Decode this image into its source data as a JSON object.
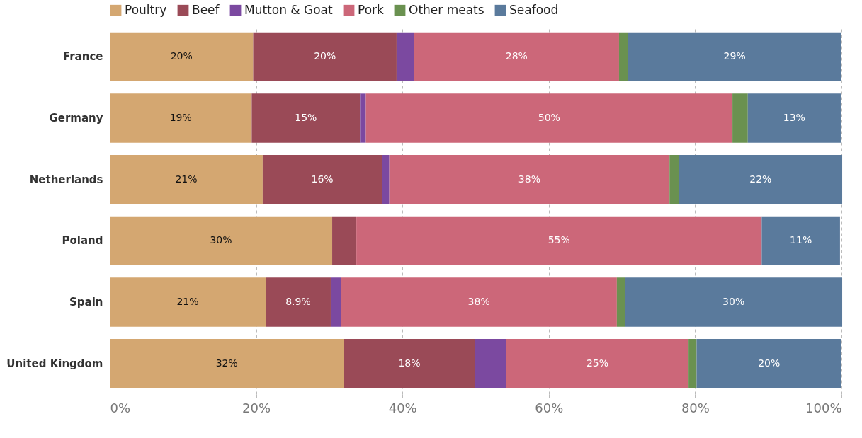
{
  "chart_data": {
    "type": "bar",
    "orientation": "horizontal",
    "stacked": true,
    "categories": [
      "France",
      "Germany",
      "Netherlands",
      "Poland",
      "Spain",
      "United Kingdom"
    ],
    "series": [
      {
        "name": "Poultry",
        "color": "#d4a771",
        "values": [
          19.6,
          19.4,
          20.9,
          30.4,
          21.3,
          32.0
        ],
        "value_labels": [
          "20%",
          "19%",
          "21%",
          "30%",
          "21%",
          "32%"
        ]
      },
      {
        "name": "Beef",
        "color": "#9a4a57",
        "values": [
          19.6,
          14.8,
          16.3,
          3.3,
          8.9,
          17.9
        ],
        "value_labels": [
          "20%",
          "15%",
          "16%",
          null,
          "8.9%",
          "18%"
        ]
      },
      {
        "name": "Mutton & Goat",
        "color": "#7b49a0",
        "values": [
          2.4,
          0.8,
          1.0,
          0,
          1.4,
          4.3
        ],
        "value_labels": [
          null,
          null,
          null,
          null,
          null,
          null
        ]
      },
      {
        "name": "Pork",
        "color": "#cc6779",
        "values": [
          28.0,
          50.1,
          38.3,
          55.4,
          37.7,
          24.9
        ],
        "value_labels": [
          "28%",
          "50%",
          "38%",
          "55%",
          "38%",
          "25%"
        ]
      },
      {
        "name": "Other meats",
        "color": "#6a9150",
        "values": [
          1.2,
          2.1,
          1.3,
          0,
          1.1,
          1.1
        ],
        "value_labels": [
          null,
          null,
          null,
          null,
          null,
          null
        ]
      },
      {
        "name": "Seafood",
        "color": "#5a7a9c",
        "values": [
          29.2,
          12.7,
          22.3,
          10.7,
          29.7,
          19.8
        ],
        "value_labels": [
          "29%",
          "13%",
          "22%",
          "11%",
          "30%",
          "20%"
        ]
      }
    ],
    "xlim": [
      0,
      100
    ],
    "xticks": [
      {
        "value": 0,
        "label": "0%"
      },
      {
        "value": 20,
        "label": "20%"
      },
      {
        "value": 40,
        "label": "40%"
      },
      {
        "value": 60,
        "label": "60%"
      },
      {
        "value": 80,
        "label": "80%"
      },
      {
        "value": 100,
        "label": "100%"
      }
    ],
    "grid": "x",
    "legend": "top left"
  }
}
